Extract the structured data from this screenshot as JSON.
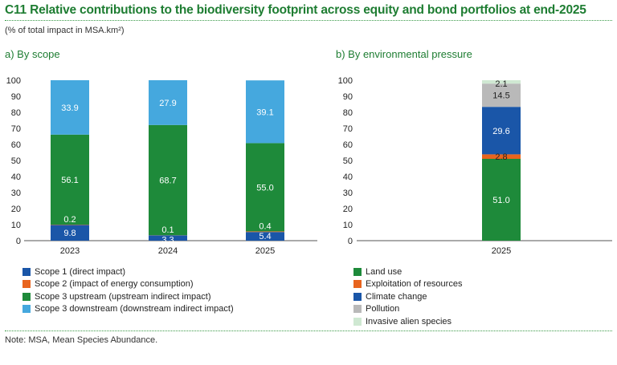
{
  "header": {
    "title": "C11  Relative contributions to the biodiversity footprint across equity and bond portfolios at end-2025",
    "subtitle": "(% of total impact in MSA.km²)"
  },
  "note": "Note: MSA, Mean Species Abundance.",
  "chart_data": [
    {
      "type": "bar",
      "stacked": true,
      "title": "a)  By scope",
      "categories": [
        "2023",
        "2024",
        "2025"
      ],
      "ylim": [
        0,
        100
      ],
      "yticks": [
        0,
        10,
        20,
        30,
        40,
        50,
        60,
        70,
        80,
        90,
        100
      ],
      "grid": false,
      "legend_position": "bottom",
      "series": [
        {
          "name": "Scope 1 (direct impact)",
          "values": [
            9.8,
            3.3,
            5.4
          ],
          "color": "#1a56a8",
          "labels": [
            "9.8",
            "3.3",
            "5.4"
          ]
        },
        {
          "name": "Scope 2 (impact of energy consumption)",
          "values": [
            0.2,
            0.1,
            0.4
          ],
          "color": "#e8641e",
          "labels": [
            "0.2",
            "0.1",
            "0.4"
          ]
        },
        {
          "name": "Scope 3 upstream (upstream indirect impact)",
          "values": [
            56.1,
            68.7,
            55.0
          ],
          "color": "#1e8a3a",
          "labels": [
            "56.1",
            "68.7",
            "55.0"
          ]
        },
        {
          "name": "Scope 3 downstream (downstream indirect impact)",
          "values": [
            33.9,
            27.9,
            39.1
          ],
          "color": "#45a8de",
          "labels": [
            "33.9",
            "27.9",
            "39.1"
          ]
        }
      ]
    },
    {
      "type": "bar",
      "stacked": true,
      "title": "b)  By environmental pressure",
      "categories": [
        "2025"
      ],
      "ylim": [
        0,
        100
      ],
      "yticks": [
        0,
        10,
        20,
        30,
        40,
        50,
        60,
        70,
        80,
        90,
        100
      ],
      "grid": false,
      "legend_position": "bottom",
      "series": [
        {
          "name": "Land use",
          "values": [
            51.0
          ],
          "color": "#1e8a3a",
          "labels": [
            "51.0"
          ]
        },
        {
          "name": "Exploitation of resources",
          "values": [
            2.8
          ],
          "color": "#e8641e",
          "labels": [
            "2.8"
          ]
        },
        {
          "name": "Climate change",
          "values": [
            29.6
          ],
          "color": "#1a56a8",
          "labels": [
            "29.6"
          ]
        },
        {
          "name": "Pollution",
          "values": [
            14.5
          ],
          "color": "#b9b9b9",
          "labels": [
            "14.5"
          ]
        },
        {
          "name": "Invasive alien species",
          "values": [
            2.1
          ],
          "color": "#cfe8d2",
          "labels": [
            "2.1"
          ]
        }
      ]
    }
  ]
}
